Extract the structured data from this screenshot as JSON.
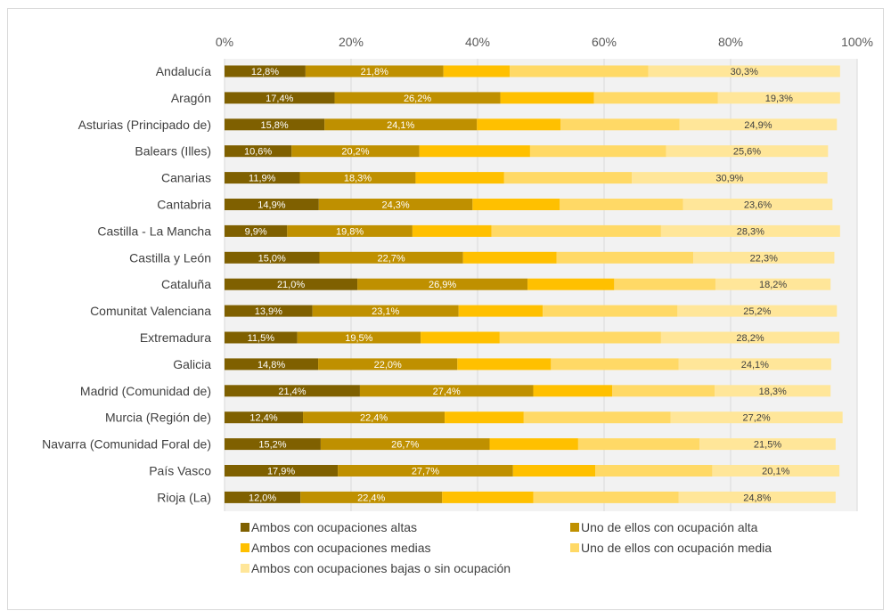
{
  "chart_data": {
    "type": "bar",
    "orientation": "horizontal",
    "stacked": true,
    "title": "",
    "xlabel": "",
    "ylabel": "",
    "xlim": [
      0,
      100
    ],
    "x_ticks": [
      "0%",
      "20%",
      "40%",
      "60%",
      "80%",
      "100%"
    ],
    "x_axis_position": "top",
    "grid": true,
    "legend_position": "bottom",
    "categories": [
      "Andalucía",
      "Aragón",
      "Asturias (Principado de)",
      "Balears (Illes)",
      "Canarias",
      "Cantabria",
      "Castilla - La Mancha",
      "Castilla y León",
      "Cataluña",
      "Comunitat Valenciana",
      "Extremadura",
      "Galicia",
      "Madrid (Comunidad de)",
      "Murcia (Región de)",
      "Navarra (Comunidad Foral de)",
      "País Vasco",
      "Rioja (La)"
    ],
    "series": [
      {
        "name": "Ambos con ocupaciones altas",
        "color": "#7f6000",
        "values": [
          12.8,
          17.4,
          15.8,
          10.6,
          11.9,
          14.9,
          9.9,
          15.0,
          21.0,
          13.9,
          11.5,
          14.8,
          21.4,
          12.4,
          15.2,
          17.9,
          12.0
        ],
        "labels": [
          "12,8%",
          "17,4%",
          "15,8%",
          "10,6%",
          "11,9%",
          "14,9%",
          "9,9%",
          "15,0%",
          "21,0%",
          "13,9%",
          "11,5%",
          "14,8%",
          "21,4%",
          "12,4%",
          "15,2%",
          "17,9%",
          "12,0%"
        ]
      },
      {
        "name": "Uno de ellos con ocupación alta",
        "color": "#bf9000",
        "values": [
          21.8,
          26.2,
          24.1,
          20.2,
          18.3,
          24.3,
          19.8,
          22.7,
          26.9,
          23.1,
          19.5,
          22.0,
          27.4,
          22.4,
          26.7,
          27.7,
          22.4
        ],
        "labels": [
          "21,8%",
          "26,2%",
          "24,1%",
          "20,2%",
          "18,3%",
          "24,3%",
          "19,8%",
          "22,7%",
          "26,9%",
          "23,1%",
          "19,5%",
          "22,0%",
          "27,4%",
          "22,4%",
          "26,7%",
          "27,7%",
          "22,4%"
        ]
      },
      {
        "name": "Ambos con ocupaciones medias",
        "color": "#ffc000",
        "values": [
          10.5,
          14.8,
          13.2,
          17.5,
          14.0,
          13.8,
          12.5,
          14.8,
          13.7,
          13.3,
          12.5,
          14.8,
          12.5,
          12.5,
          14.0,
          13.0,
          14.4
        ]
      },
      {
        "name": "Uno de ellos con ocupación media",
        "color": "#ffd966",
        "values": [
          21.9,
          19.6,
          18.8,
          21.5,
          20.2,
          19.5,
          26.8,
          21.6,
          16.0,
          21.3,
          25.5,
          20.2,
          16.2,
          23.2,
          19.2,
          18.5,
          23.0
        ]
      },
      {
        "name": "Ambos con ocupaciones bajas o sin ocupación",
        "color": "#ffe699",
        "values": [
          30.3,
          19.3,
          24.9,
          25.6,
          30.9,
          23.6,
          28.3,
          22.3,
          18.2,
          25.2,
          28.2,
          24.1,
          18.3,
          27.2,
          21.5,
          20.1,
          24.8
        ],
        "labels": [
          "30,3%",
          "19,3%",
          "24,9%",
          "25,6%",
          "30,9%",
          "23,6%",
          "28,3%",
          "22,3%",
          "18,2%",
          "25,2%",
          "28,2%",
          "24,1%",
          "18,3%",
          "27,2%",
          "21,5%",
          "20,1%",
          "24,8%"
        ]
      }
    ]
  }
}
